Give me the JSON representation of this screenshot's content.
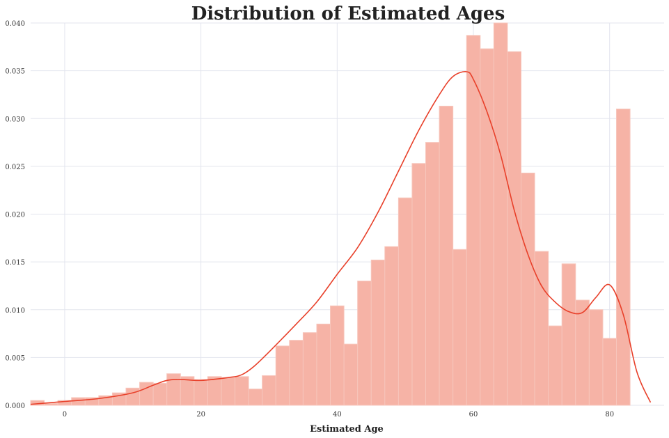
{
  "chart_data": {
    "type": "bar",
    "title": "Distribution of Estimated Ages",
    "xlabel": "Estimated Age",
    "ylabel": "",
    "xlim": [
      -5,
      88
    ],
    "ylim": [
      0,
      0.04
    ],
    "x_ticks": [
      0,
      20,
      40,
      60,
      80
    ],
    "y_ticks": [
      0.0,
      0.005,
      0.01,
      0.015,
      0.02,
      0.025,
      0.03,
      0.035,
      0.04
    ],
    "y_tick_labels": [
      "0.000",
      "0.005",
      "0.010",
      "0.015",
      "0.020",
      "0.025",
      "0.030",
      "0.035",
      "0.040"
    ],
    "grid": true,
    "series": [
      {
        "kind": "histogram",
        "color": "#f6b3a6",
        "bin_edges": [
          -5,
          -3,
          -1,
          1,
          3,
          5,
          7,
          9,
          11,
          13,
          15,
          17,
          19,
          21,
          23,
          25,
          27,
          29,
          31,
          33,
          35,
          37,
          39,
          41,
          43,
          45,
          47,
          49,
          51,
          53,
          55,
          57,
          59,
          61,
          63,
          65,
          67,
          69,
          71,
          73,
          75,
          77,
          79,
          81,
          83
        ],
        "values": [
          0.0005,
          0.0002,
          0.0005,
          0.0008,
          0.0008,
          0.001,
          0.0013,
          0.0018,
          0.0024,
          0.0023,
          0.0033,
          0.003,
          0.0027,
          0.003,
          0.0029,
          0.003,
          0.0017,
          0.0031,
          0.0062,
          0.0068,
          0.0076,
          0.0085,
          0.0104,
          0.0064,
          0.013,
          0.0152,
          0.0166,
          0.0217,
          0.0253,
          0.0275,
          0.0313,
          0.0163,
          0.0387,
          0.0373,
          0.04,
          0.037,
          0.0243,
          0.0161,
          0.0083,
          0.0148,
          0.011,
          0.01,
          0.007,
          0.031,
          0.0022
        ]
      },
      {
        "kind": "kde",
        "color": "#e8402a",
        "x": [
          -5,
          0,
          5,
          10,
          13,
          15,
          17,
          20,
          24,
          26,
          28,
          31,
          34,
          37,
          40,
          43,
          46,
          49,
          52,
          55,
          57,
          59,
          60,
          62,
          64,
          66,
          68,
          70,
          72,
          74,
          76,
          78,
          80,
          82,
          84,
          86
        ],
        "y": [
          0.0001,
          0.0004,
          0.0007,
          0.0013,
          0.0021,
          0.0026,
          0.0027,
          0.0026,
          0.0029,
          0.0032,
          0.0042,
          0.0063,
          0.0085,
          0.0108,
          0.0137,
          0.0165,
          0.0202,
          0.0245,
          0.0288,
          0.0325,
          0.0344,
          0.0349,
          0.0341,
          0.0307,
          0.0262,
          0.0204,
          0.0158,
          0.0125,
          0.0108,
          0.0098,
          0.0097,
          0.0113,
          0.0126,
          0.0095,
          0.0035,
          0.0003
        ]
      }
    ]
  }
}
